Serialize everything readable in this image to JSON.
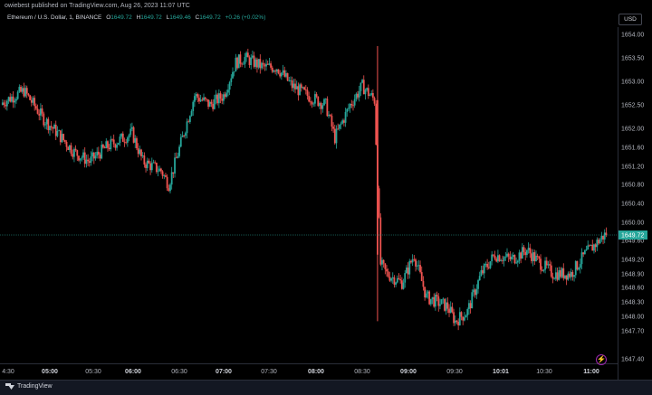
{
  "header": {
    "published_text": "owiebest published on TradingView.com, Aug 26, 2023 11:07 UTC"
  },
  "legend": {
    "symbol": "Ethereum / U.S. Dollar, 1, BINANCE",
    "o_label": "O",
    "o_value": "1649.72",
    "h_label": "H",
    "h_value": "1649.72",
    "l_label": "L",
    "l_value": "1649.46",
    "c_label": "C",
    "c_value": "1649.72",
    "change": "+0.26 (+0.02%)"
  },
  "toolbar": {
    "currency": "USD"
  },
  "footer": {
    "brand": "TradingView"
  },
  "icons": {
    "replay": "lightning-icon",
    "logo": "tradingview-logo-icon"
  },
  "colors": {
    "up": "#26a69a",
    "down": "#ef5350",
    "current_price": "#26a69a"
  },
  "chart_data": {
    "type": "candlestick",
    "title": "Ethereum / U.S. Dollar, 1, BINANCE",
    "xlabel": "",
    "ylabel": "",
    "x_ticks": [
      "4:30",
      "05:00",
      "05:30",
      "06:00",
      "06:30",
      "07:00",
      "07:30",
      "08:00",
      "08:30",
      "09:00",
      "09:30",
      "10:01",
      "10:30",
      "11:00"
    ],
    "x_ticks_bold": [
      "05:00",
      "06:00",
      "07:00",
      "08:00",
      "09:00",
      "10:01",
      "11:00"
    ],
    "y_ticks": [
      "1654.00",
      "1653.50",
      "1653.00",
      "1652.50",
      "1652.00",
      "1651.60",
      "1651.20",
      "1650.80",
      "1650.40",
      "1650.00",
      "1649.60",
      "1649.20",
      "1648.90",
      "1648.60",
      "1648.30",
      "1648.00",
      "1647.70",
      "1647.40"
    ],
    "current_price_label": "1649.72",
    "current_price": 1649.72,
    "control_points": [
      [
        "04:27",
        1652.5
      ],
      [
        "04:44",
        1652.8
      ],
      [
        "04:57",
        1652.2
      ],
      [
        "05:06",
        1651.9
      ],
      [
        "05:17",
        1651.5
      ],
      [
        "05:27",
        1651.3
      ],
      [
        "05:38",
        1651.6
      ],
      [
        "05:55",
        1651.9
      ],
      [
        "06:02",
        1651.3
      ],
      [
        "06:14",
        1651.1
      ],
      [
        "06:19",
        1650.8
      ],
      [
        "06:28",
        1651.8
      ],
      [
        "06:36",
        1652.7
      ],
      [
        "06:46",
        1652.5
      ],
      [
        "06:55",
        1652.7
      ],
      [
        "07:03",
        1653.4
      ],
      [
        "07:09",
        1653.5
      ],
      [
        "07:21",
        1653.3
      ],
      [
        "07:30",
        1653.3
      ],
      [
        "07:40",
        1652.9
      ],
      [
        "07:50",
        1652.7
      ],
      [
        "08:02",
        1652.5
      ],
      [
        "08:08",
        1651.8
      ],
      [
        "08:18",
        1652.5
      ],
      [
        "08:26",
        1652.9
      ],
      [
        "08:34",
        1652.6
      ],
      [
        "08:38",
        1649.1
      ],
      [
        "08:42",
        1648.9
      ],
      [
        "08:52",
        1648.7
      ],
      [
        "09:00",
        1649.3
      ],
      [
        "09:08",
        1648.4
      ],
      [
        "09:22",
        1648.2
      ],
      [
        "09:27",
        1647.9
      ],
      [
        "09:35",
        1648.1
      ],
      [
        "09:44",
        1648.9
      ],
      [
        "09:53",
        1649.3
      ],
      [
        "10:04",
        1649.2
      ],
      [
        "10:14",
        1649.4
      ],
      [
        "10:20",
        1649.2
      ],
      [
        "10:31",
        1648.9
      ],
      [
        "10:43",
        1648.9
      ],
      [
        "10:52",
        1649.3
      ],
      [
        "11:05",
        1649.72
      ]
    ]
  }
}
